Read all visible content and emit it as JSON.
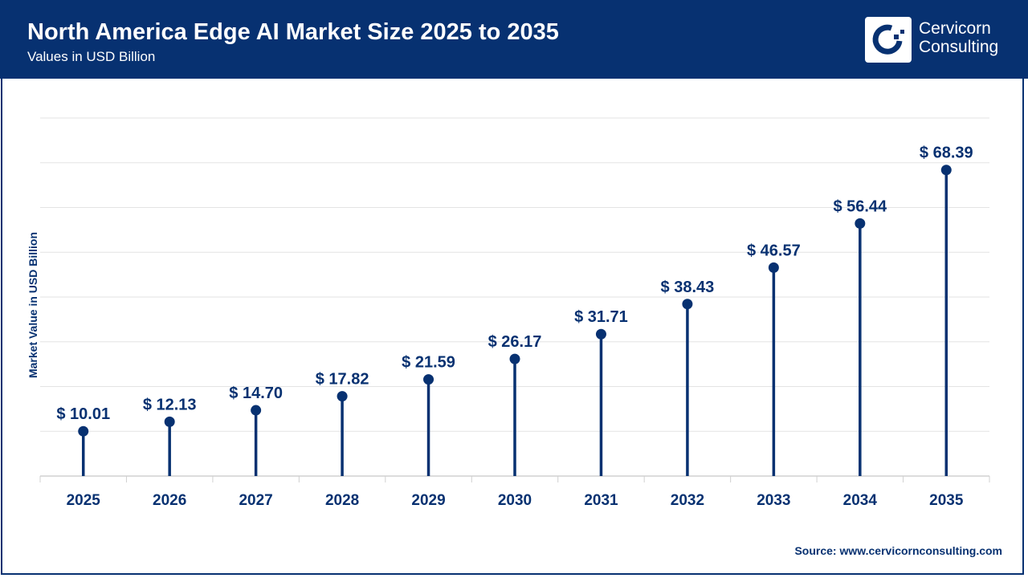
{
  "header": {
    "title": "North America Edge AI Market Size 2025 to 2035",
    "subtitle": "Values in USD Billion",
    "logo_text_line1": "Cervicorn",
    "logo_text_line2": "Consulting"
  },
  "source": "Source: www.cervicornconsulting.com",
  "colors": {
    "primary": "#073171",
    "grid": "#e3e3e3",
    "background": "#ffffff"
  },
  "chart_data": {
    "type": "lollipop",
    "title": "North America Edge AI Market Size 2025 to 2035",
    "subtitle": "Values in USD Billion",
    "xlabel": "",
    "ylabel": "Market Value in USD Billion",
    "ylim": [
      0,
      80
    ],
    "grid": true,
    "categories": [
      "2025",
      "2026",
      "2027",
      "2028",
      "2029",
      "2030",
      "2031",
      "2032",
      "2033",
      "2034",
      "2035"
    ],
    "values": [
      10.01,
      12.13,
      14.7,
      17.82,
      21.59,
      26.17,
      31.71,
      38.43,
      46.57,
      56.44,
      68.39
    ],
    "data_labels": [
      "$ 10.01",
      "$ 12.13",
      "$ 14.70",
      "$ 17.82",
      "$ 21.59",
      "$ 26.17",
      "$ 31.71",
      "$ 38.43",
      "$ 46.57",
      "$ 56.44",
      "$ 68.39"
    ]
  }
}
